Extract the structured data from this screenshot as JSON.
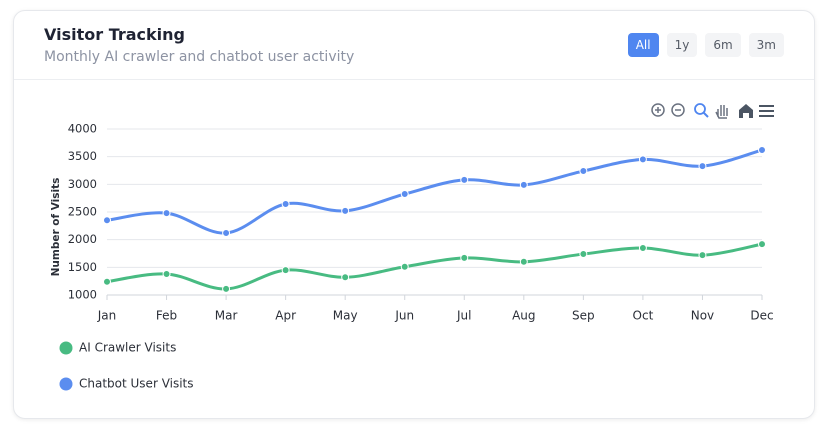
{
  "chart_data": {
    "type": "line",
    "title": "Visitor Tracking",
    "subtitle": "Monthly AI crawler and chatbot user activity",
    "range_buttons": [
      "All",
      "1y",
      "6m",
      "3m"
    ],
    "active_range": 0,
    "y_label": "Number of Visits",
    "categories": [
      "Jan",
      "Feb",
      "Mar",
      "Apr",
      "May",
      "Jun",
      "Jul",
      "Aug",
      "Sep",
      "Oct",
      "Nov",
      "Dec"
    ],
    "series": [
      {
        "name": "AI Crawler Visits",
        "color": "#48bb82",
        "values": [
          1240,
          1380,
          1110,
          1450,
          1320,
          1510,
          1670,
          1600,
          1740,
          1850,
          1720,
          1920
        ]
      },
      {
        "name": "Chatbot User Visits",
        "color": "#5b8def",
        "values": [
          2350,
          2480,
          2120,
          2645,
          2520,
          2825,
          3080,
          2990,
          3240,
          3450,
          3330,
          3620
        ]
      }
    ],
    "ylim": [
      1000,
      4000
    ],
    "yticks": [
      1000,
      1500,
      2000,
      2500,
      3000,
      3500,
      4000
    ],
    "grid": true
  }
}
